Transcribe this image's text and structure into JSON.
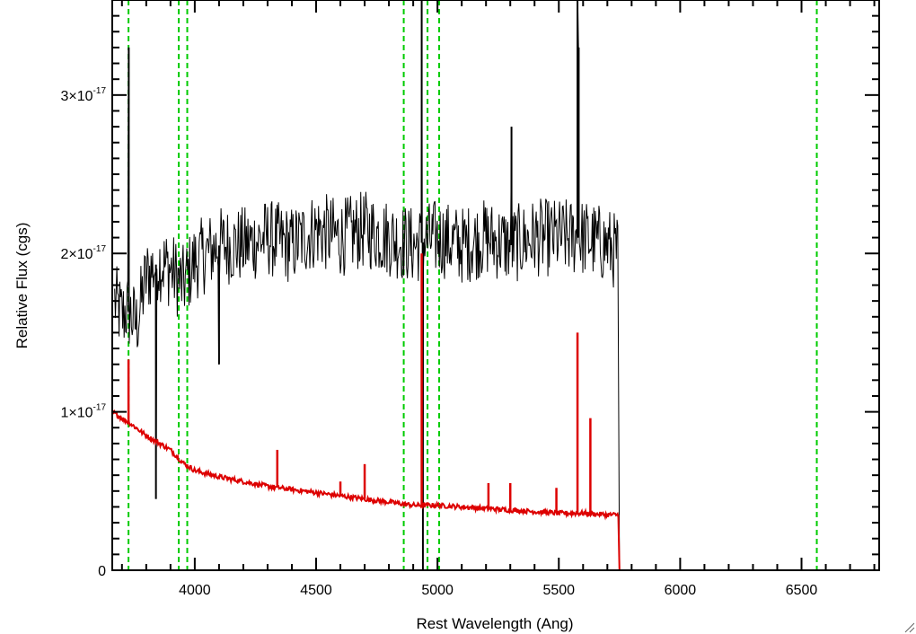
{
  "chart_data": {
    "type": "line",
    "title": "",
    "xlabel": "Rest Wavelength (Ang)",
    "ylabel": "Relative Flux (cgs)",
    "xlim": [
      3660,
      6820
    ],
    "ylim": [
      0,
      3.6e-17
    ],
    "x_ticks": [
      {
        "value": 4000,
        "label": "4000"
      },
      {
        "value": 4500,
        "label": "4500"
      },
      {
        "value": 5000,
        "label": "5000"
      },
      {
        "value": 5500,
        "label": "5500"
      },
      {
        "value": 6000,
        "label": "6000"
      },
      {
        "value": 6500,
        "label": "6500"
      }
    ],
    "y_ticks": [
      {
        "value": 0,
        "mantissa": "0",
        "exponent": ""
      },
      {
        "value": 1e-17,
        "mantissa": "1×10",
        "exponent": "-17"
      },
      {
        "value": 2e-17,
        "mantissa": "2×10",
        "exponent": "-17"
      },
      {
        "value": 3e-17,
        "mantissa": "3×10",
        "exponent": "-17"
      }
    ],
    "reference_lines": {
      "color": "#00cc00",
      "style": "dashed",
      "x": [
        3727,
        3934,
        3969,
        4861,
        4959,
        5007,
        6563
      ]
    },
    "series": [
      {
        "color": "#000000",
        "style": "noisy",
        "x": [
          3670,
          3700,
          3720,
          3740,
          3760,
          3800,
          3850,
          3900,
          3950,
          4000,
          4100,
          4200,
          4300,
          4400,
          4500,
          4600,
          4700,
          4800,
          4900,
          5000,
          5100,
          5200,
          5300,
          5400,
          5500,
          5600,
          5700,
          5745
        ],
        "y": [
          1.7e-17,
          1.6e-17,
          1.65e-17,
          1.6e-17,
          1.55e-17,
          1.85e-17,
          1.95e-17,
          1.9e-17,
          1.8e-17,
          1.95e-17,
          2.05e-17,
          2.05e-17,
          2.1e-17,
          2.05e-17,
          2.15e-17,
          2.1e-17,
          2.15e-17,
          2.1e-17,
          2.05e-17,
          2.1e-17,
          2.05e-17,
          2.1e-17,
          2.05e-17,
          2.1e-17,
          2.1e-17,
          2.1e-17,
          2.05e-17,
          2e-17
        ],
        "spikes": [
          {
            "x": 3728,
            "y": 3.3e-17
          },
          {
            "x": 3840,
            "y": 4.5e-18
          },
          {
            "x": 4100,
            "y": 1.3e-17
          },
          {
            "x": 4935,
            "y": 3.6e-17
          },
          {
            "x": 4940,
            "y": 0.0
          },
          {
            "x": 5305,
            "y": 2.8e-17
          },
          {
            "x": 5577,
            "y": 3.6e-17
          },
          {
            "x": 5582,
            "y": 3.3e-17
          }
        ],
        "noise_amplitude": 2.5e-18,
        "drop_to": {
          "x": 5750,
          "y": 0
        }
      },
      {
        "color": "#dd0000",
        "style": "smooth",
        "x": [
          3660,
          3700,
          3740,
          3800,
          3900,
          3950,
          4000,
          4100,
          4200,
          4300,
          4400,
          4500,
          4600,
          4700,
          4800,
          4900,
          5000,
          5100,
          5200,
          5300,
          5400,
          5500,
          5600,
          5700,
          5745,
          5750,
          5760,
          6820
        ],
        "y": [
          1e-17,
          9.6e-18,
          9.2e-18,
          8.5e-18,
          7.6e-18,
          6.8e-18,
          6.3e-18,
          5.9e-18,
          5.6e-18,
          5.3e-18,
          5.1e-18,
          4.9e-18,
          4.7e-18,
          4.5e-18,
          4.3e-18,
          4.1e-18,
          4.1e-18,
          4e-18,
          3.9e-18,
          3.8e-18,
          3.7e-18,
          3.6e-18,
          3.6e-18,
          3.5e-18,
          3.5e-18,
          0.0,
          0.0,
          0.0
        ],
        "lines": [
          {
            "x": 3727,
            "y": 1.33e-17
          },
          {
            "x": 4340,
            "y": 7.6e-18
          },
          {
            "x": 4600,
            "y": 5.6e-18
          },
          {
            "x": 4700,
            "y": 6.7e-18
          },
          {
            "x": 4935,
            "y": 2e-17
          },
          {
            "x": 5210,
            "y": 5.5e-18
          },
          {
            "x": 5300,
            "y": 5.5e-18
          },
          {
            "x": 5490,
            "y": 5.2e-18
          },
          {
            "x": 5577,
            "y": 1.5e-17
          },
          {
            "x": 5630,
            "y": 9.6e-18
          }
        ]
      }
    ],
    "grid": false,
    "legend": "none"
  }
}
